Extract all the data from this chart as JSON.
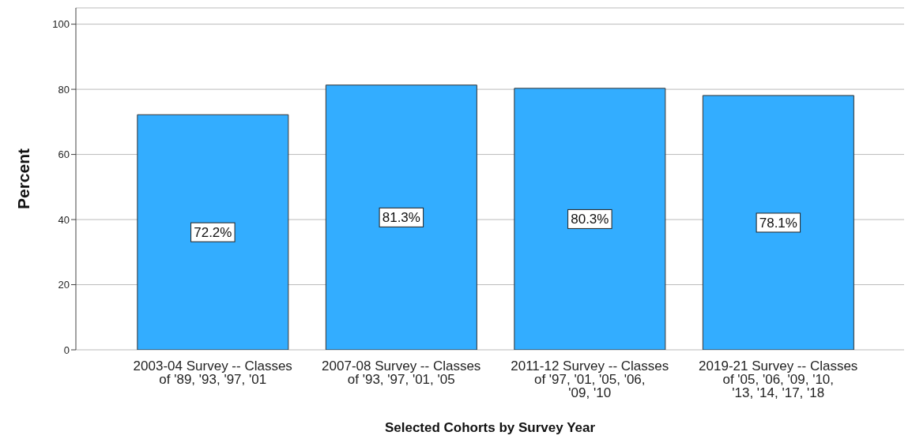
{
  "chart_data": {
    "type": "bar",
    "xlabel": "Selected Cohorts by Survey Year",
    "ylabel": "Percent",
    "categories": [
      "2003-04 Survey -- Classes of '89, '93, '97, '01",
      "2007-08 Survey -- Classes of '93, '97, '01, '05",
      "2011-12 Survey -- Classes of '97, '01, '05, '06, '09, '10",
      "2019-21 Survey -- Classes of '05, '06, '09, '10, '13, '14, '17, '18"
    ],
    "values": [
      72.2,
      81.3,
      80.3,
      78.1
    ],
    "value_labels": [
      "72.2%",
      "81.3%",
      "80.3%",
      "78.1%"
    ],
    "color": "#33adff",
    "ylim": [
      0,
      105
    ],
    "yticks": [
      0,
      20,
      40,
      60,
      80,
      100
    ],
    "grid": "y"
  }
}
